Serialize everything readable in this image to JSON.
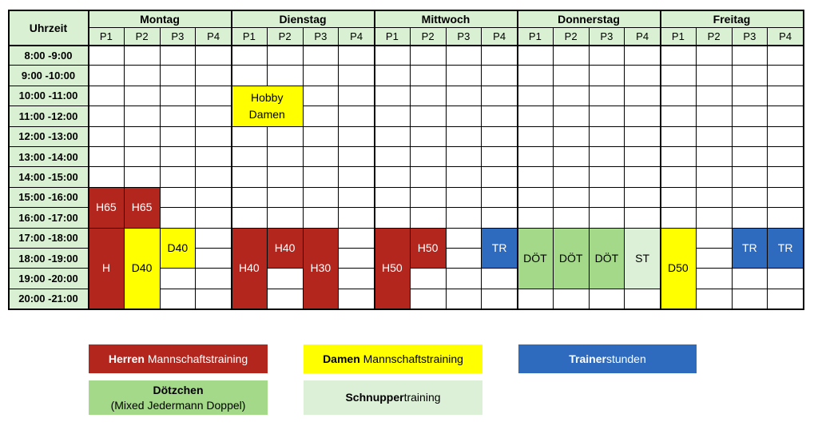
{
  "header": {
    "time_label": "Uhrzeit"
  },
  "days": [
    "Montag",
    "Dienstag",
    "Mittwoch",
    "Donnerstag",
    "Freitag"
  ],
  "courts": [
    "P1",
    "P2",
    "P3",
    "P4"
  ],
  "times": [
    "8:00 -9:00",
    "9:00 -10:00",
    "10:00 -11:00",
    "11:00 -12:00",
    "12:00 -13:00",
    "13:00 -14:00",
    "14:00 -15:00",
    "15:00 -16:00",
    "16:00 -17:00",
    "17:00 -18:00",
    "18:00 -19:00",
    "19:00 -20:00",
    "20:00 -21:00"
  ],
  "colors": {
    "header_bg": "#d9f0d3",
    "herren": "#b2261e",
    "damen": "#ffff00",
    "trainer": "#2e6bbf",
    "doetzchen": "#a5d98a",
    "schnupper": "#dcefd7"
  },
  "blocks": [
    {
      "label": "H65",
      "day": 0,
      "court": 0,
      "start": 7,
      "rows": 2,
      "category": "herren"
    },
    {
      "label": "H65",
      "day": 0,
      "court": 1,
      "start": 7,
      "rows": 2,
      "category": "herren"
    },
    {
      "label": "H",
      "day": 0,
      "court": 0,
      "start": 9,
      "rows": 4,
      "category": "herren"
    },
    {
      "label": "D40",
      "day": 0,
      "court": 1,
      "start": 9,
      "rows": 4,
      "category": "damen"
    },
    {
      "label": "D40",
      "day": 0,
      "court": 2,
      "start": 9,
      "rows": 2,
      "category": "damen"
    },
    {
      "label": "Hobby\nDamen",
      "day": 1,
      "court": 0,
      "start": 2,
      "rows": 2,
      "category": "damen"
    },
    {
      "label": "H40",
      "day": 1,
      "court": 0,
      "start": 9,
      "rows": 4,
      "category": "herren"
    },
    {
      "label": "H40",
      "day": 1,
      "court": 1,
      "start": 9,
      "rows": 2,
      "category": "herren"
    },
    {
      "label": "H30",
      "day": 1,
      "court": 2,
      "start": 9,
      "rows": 4,
      "category": "herren"
    },
    {
      "label": "H50",
      "day": 2,
      "court": 0,
      "start": 9,
      "rows": 4,
      "category": "herren"
    },
    {
      "label": "H50",
      "day": 2,
      "court": 1,
      "start": 9,
      "rows": 2,
      "category": "herren"
    },
    {
      "label": "TR",
      "day": 2,
      "court": 3,
      "start": 9,
      "rows": 2,
      "category": "trainer"
    },
    {
      "label": "DÖT",
      "day": 3,
      "court": 0,
      "start": 9,
      "rows": 3,
      "category": "doetzchen"
    },
    {
      "label": "DÖT",
      "day": 3,
      "court": 1,
      "start": 9,
      "rows": 3,
      "category": "doetzchen"
    },
    {
      "label": "DÖT",
      "day": 3,
      "court": 2,
      "start": 9,
      "rows": 3,
      "category": "doetzchen"
    },
    {
      "label": "ST",
      "day": 3,
      "court": 3,
      "start": 9,
      "rows": 3,
      "category": "schnupper"
    },
    {
      "label": "D50",
      "day": 4,
      "court": 0,
      "start": 9,
      "rows": 4,
      "category": "damen"
    },
    {
      "label": "TR",
      "day": 4,
      "court": 2,
      "start": 9,
      "rows": 2,
      "category": "trainer"
    },
    {
      "label": "TR",
      "day": 4,
      "court": 3,
      "start": 9,
      "rows": 2,
      "category": "trainer"
    }
  ],
  "legend": {
    "herren": {
      "bold": "Herren",
      "rest": " Mannschaftstraining"
    },
    "damen": {
      "bold": "Damen",
      "rest": " Mannschaftstraining"
    },
    "trainer": {
      "bold": "Trainer",
      "rest": "stunden"
    },
    "doetzchen": {
      "bold": "Dötzchen",
      "rest": "(Mixed Jedermann Doppel)"
    },
    "schnupper": {
      "bold": "Schnupper",
      "rest": "training"
    }
  }
}
